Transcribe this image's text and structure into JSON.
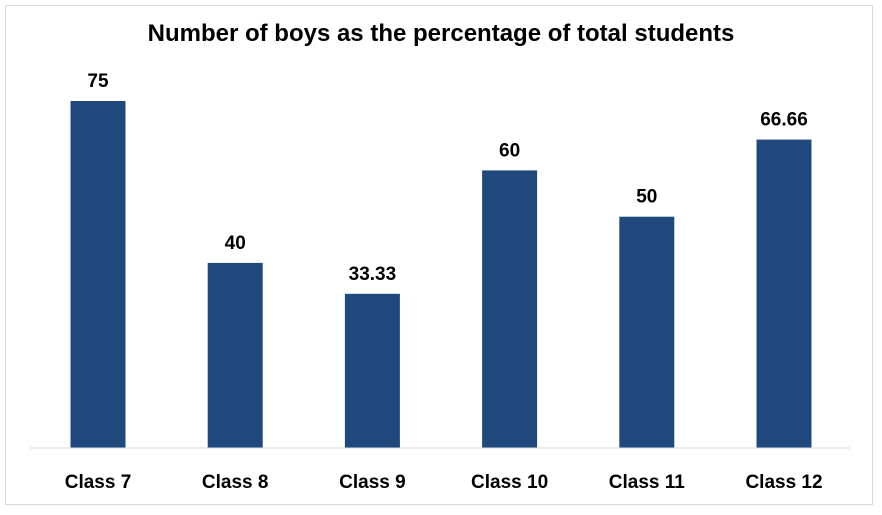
{
  "chart_data": {
    "type": "bar",
    "title": "Number of boys as the percentage of total students",
    "categories": [
      "Class 7",
      "Class 8",
      "Class 9",
      "Class 10",
      "Class 11",
      "Class 12"
    ],
    "values": [
      75,
      40,
      33.33,
      60,
      50,
      66.66
    ],
    "data_labels": [
      "75",
      "40",
      "33.33",
      "60",
      "50",
      "66.66"
    ],
    "xlabel": "",
    "ylabel": "",
    "ylim": [
      0,
      75
    ],
    "grid": false,
    "legend": "none",
    "bar_color": "#1f497d"
  }
}
